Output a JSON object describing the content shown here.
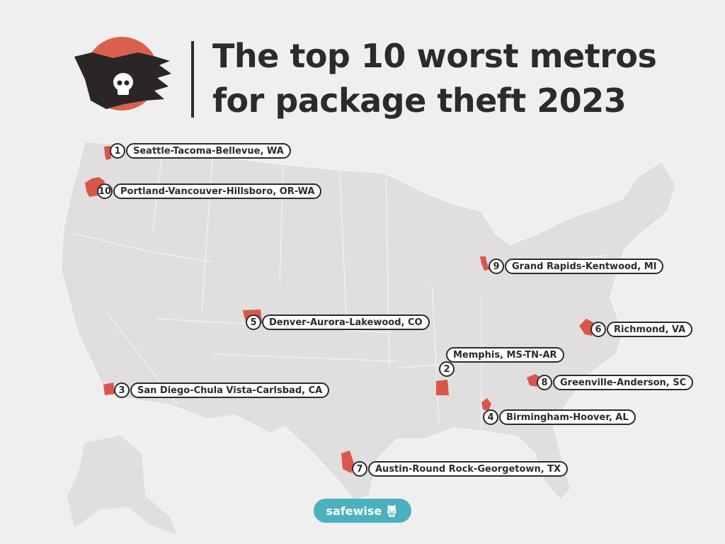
{
  "title_line1": "The top 10 worst metros",
  "title_line2": "for package theft 2023",
  "brand": "safewise",
  "colors": {
    "metro": "#d9574a",
    "land": "#e0dede",
    "text": "#2d2a2a",
    "brand": "#4bb1bf",
    "sun": "#d9604d"
  },
  "metros": [
    {
      "rank": "1",
      "name": "Seattle-Tacoma-Bellevue, WA"
    },
    {
      "rank": "2",
      "name": "Memphis, MS-TN-AR"
    },
    {
      "rank": "3",
      "name": "San Diego-Chula Vista-Carlsbad, CA"
    },
    {
      "rank": "4",
      "name": "Birmingham-Hoover, AL"
    },
    {
      "rank": "5",
      "name": "Denver-Aurora-Lakewood, CO"
    },
    {
      "rank": "6",
      "name": "Richmond, VA"
    },
    {
      "rank": "7",
      "name": "Austin-Round Rock-Georgetown, TX"
    },
    {
      "rank": "8",
      "name": "Greenville-Anderson, SC"
    },
    {
      "rank": "9",
      "name": "Grand Rapids-Kentwood, MI"
    },
    {
      "rank": "10",
      "name": "Portland-Vancouver-Hillsboro, OR-WA"
    }
  ]
}
